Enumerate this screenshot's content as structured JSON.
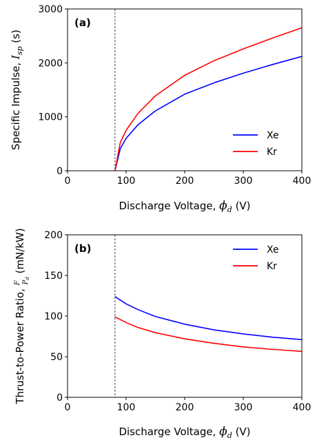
{
  "chart_data": [
    {
      "type": "line",
      "panel_label": "(a)",
      "xlabel": "Discharge Voltage, ",
      "xlabel_symbol": "ϕ",
      "xlabel_sub": "d",
      "xlabel_unit": " (V)",
      "ylabel": "Specific Impulse, ",
      "ylabel_symbol": "I",
      "ylabel_sub": "sp",
      "ylabel_unit": " (s)",
      "xlim": [
        0,
        400
      ],
      "ylim": [
        0,
        3000
      ],
      "xticks": [
        0,
        100,
        200,
        300,
        400
      ],
      "yticks": [
        0,
        1000,
        2000,
        3000
      ],
      "vline_x": 81,
      "legend_position": "lower-right",
      "series": [
        {
          "name": "Xe",
          "color": "#0000ff",
          "x": [
            81,
            90,
            100,
            120,
            150,
            200,
            250,
            300,
            350,
            400
          ],
          "y": [
            0,
            410,
            600,
            850,
            1110,
            1420,
            1630,
            1810,
            1970,
            2120
          ]
        },
        {
          "name": "Kr",
          "color": "#ff0000",
          "x": [
            81,
            90,
            100,
            120,
            150,
            200,
            250,
            300,
            350,
            400
          ],
          "y": [
            0,
            520,
            750,
            1060,
            1390,
            1770,
            2040,
            2260,
            2460,
            2650
          ]
        }
      ]
    },
    {
      "type": "line",
      "panel_label": "(b)",
      "xlabel": "Discharge Voltage, ",
      "xlabel_symbol": "ϕ",
      "xlabel_sub": "d",
      "xlabel_unit": " (V)",
      "ylabel": "Thrust-to-Power Ratio, ",
      "ylabel_num": "F",
      "ylabel_den": "P",
      "ylabel_den_sub": "d",
      "ylabel_unit": " (mN/kW)",
      "xlim": [
        0,
        400
      ],
      "ylim": [
        0,
        200
      ],
      "xticks": [
        0,
        100,
        200,
        300,
        400
      ],
      "yticks": [
        0,
        50,
        100,
        150,
        200
      ],
      "vline_x": 81,
      "legend_position": "upper-right",
      "series": [
        {
          "name": "Xe",
          "color": "#0000ff",
          "x": [
            81,
            100,
            120,
            150,
            200,
            250,
            300,
            350,
            400
          ],
          "y": [
            124,
            115,
            108,
            99.5,
            90,
            83,
            78,
            74,
            71
          ]
        },
        {
          "name": "Kr",
          "color": "#ff0000",
          "x": [
            81,
            100,
            120,
            150,
            200,
            250,
            300,
            350,
            400
          ],
          "y": [
            99,
            92,
            86,
            79.5,
            72,
            66.5,
            62,
            59,
            56.5
          ]
        }
      ]
    }
  ]
}
